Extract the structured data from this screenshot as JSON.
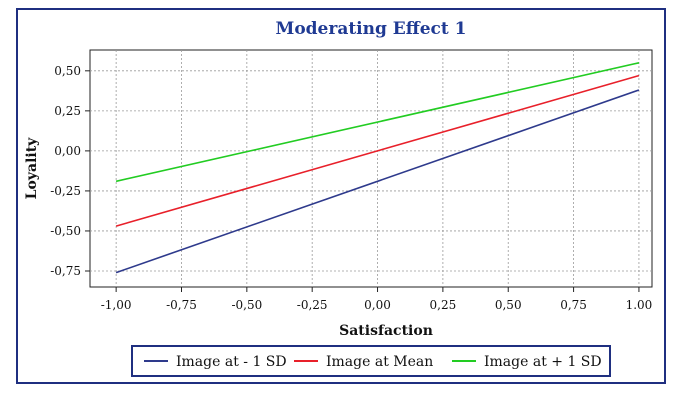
{
  "chart_data": {
    "type": "line",
    "title": "Moderating Effect 1",
    "xlabel": "Satisfaction",
    "ylabel": "Loyality",
    "xlim": [
      -1.1,
      1.05
    ],
    "ylim": [
      -0.85,
      0.63
    ],
    "x_ticks": [
      -1.0,
      -0.75,
      -0.5,
      -0.25,
      0.0,
      0.25,
      0.5,
      0.75,
      1.0
    ],
    "x_tick_labels": [
      "-1,00",
      "-0,75",
      "-0,50",
      "-0,25",
      "0,00",
      "0,25",
      "0,50",
      "0,75",
      "1.00"
    ],
    "y_ticks": [
      0.5,
      0.25,
      0.0,
      -0.25,
      -0.5,
      -0.75
    ],
    "y_tick_labels": [
      "0,50",
      "0,25",
      "0,00",
      "-0,25",
      "-0,50",
      "-0,75"
    ],
    "grid": true,
    "legend_position": "bottom",
    "x": [
      -1.0,
      1.0
    ],
    "series": [
      {
        "name": "Image at - 1 SD",
        "values": [
          -0.76,
          0.38
        ],
        "color": "#2e3a8c"
      },
      {
        "name": "Image at Mean",
        "values": [
          -0.47,
          0.47
        ],
        "color": "#e8202a"
      },
      {
        "name": "Image at + 1 SD",
        "values": [
          -0.19,
          0.55
        ],
        "color": "#22cc22"
      }
    ]
  },
  "colors": {
    "frame": "#1f2f80",
    "title": "#1f3a93",
    "grid": "#9a9a9a"
  }
}
